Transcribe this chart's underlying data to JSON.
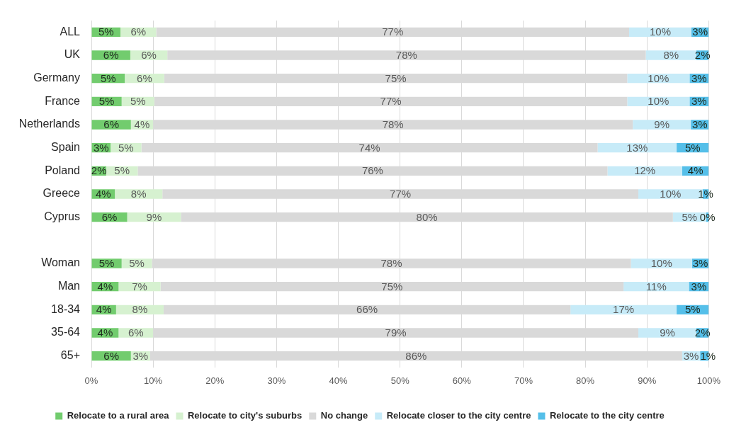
{
  "chart_data": {
    "type": "bar",
    "orientation": "horizontal",
    "stacked": true,
    "categories": [
      "ALL",
      "UK",
      "Germany",
      "France",
      "Netherlands",
      "Spain",
      "Poland",
      "Greece",
      "Cyprus",
      null,
      "Woman",
      "Man",
      "18-34",
      "35-64",
      "65+"
    ],
    "series": [
      {
        "name": "Relocate to a rural area",
        "color": "#72cc6e",
        "values": [
          4.7,
          6.3,
          5.4,
          4.9,
          6.4,
          3.1,
          2.4,
          3.8,
          5.8,
          null,
          4.9,
          4.4,
          4.0,
          4.4,
          6.4
        ],
        "value_labels": [
          "5%",
          "6%",
          "5%",
          "5%",
          "6%",
          "3%",
          "2%",
          "4%",
          "6%",
          null,
          "5%",
          "4%",
          "4%",
          "4%",
          "6%"
        ]
      },
      {
        "name": "Relocate to city's suburbs",
        "color": "#d6f1d0",
        "values": [
          5.8,
          6.0,
          6.4,
          5.3,
          3.6,
          5.0,
          5.1,
          7.7,
          8.7,
          null,
          4.9,
          6.8,
          7.7,
          5.6,
          3.1
        ],
        "value_labels": [
          "6%",
          "6%",
          "6%",
          "5%",
          "4%",
          "5%",
          "5%",
          "8%",
          "9%",
          null,
          "5%",
          "7%",
          "8%",
          "6%",
          "3%"
        ]
      },
      {
        "name": "No change",
        "color": "#d9d9d9",
        "values": [
          76.6,
          77.5,
          75.0,
          76.6,
          77.7,
          73.9,
          76.1,
          77.1,
          79.7,
          null,
          77.6,
          75.0,
          65.9,
          78.6,
          86.2
        ],
        "value_labels": [
          "77%",
          "78%",
          "75%",
          "77%",
          "78%",
          "74%",
          "76%",
          "77%",
          "80%",
          null,
          "78%",
          "75%",
          "66%",
          "79%",
          "86%"
        ]
      },
      {
        "name": "Relocate closer to the city centre",
        "color": "#c7ebf8",
        "values": [
          10.1,
          8.2,
          10.1,
          10.1,
          9.4,
          12.8,
          12.1,
          10.4,
          5.4,
          null,
          9.9,
          10.6,
          17.2,
          9.4,
          2.9
        ],
        "value_labels": [
          "10%",
          "8%",
          "10%",
          "10%",
          "9%",
          "13%",
          "12%",
          "10%",
          "5%",
          null,
          "10%",
          "11%",
          "17%",
          "9%",
          "3%"
        ]
      },
      {
        "name": "Relocate to the city centre",
        "color": "#55bfe9",
        "values": [
          2.8,
          2.0,
          3.1,
          3.1,
          2.9,
          5.2,
          4.3,
          1.0,
          0.4,
          null,
          2.7,
          3.2,
          5.2,
          2.0,
          1.4
        ],
        "value_labels": [
          "3%",
          "2%",
          "3%",
          "3%",
          "3%",
          "5%",
          "4%",
          "1%",
          "0%",
          null,
          "3%",
          "3%",
          "5%",
          "2%",
          "1%"
        ]
      }
    ],
    "xlim": [
      0,
      100
    ],
    "xticks": [
      {
        "value": 0,
        "label": "0%"
      },
      {
        "value": 10,
        "label": "10%"
      },
      {
        "value": 20,
        "label": "20%"
      },
      {
        "value": 30,
        "label": "30%"
      },
      {
        "value": 40,
        "label": "40%"
      },
      {
        "value": 50,
        "label": "50%"
      },
      {
        "value": 60,
        "label": "60%"
      },
      {
        "value": 70,
        "label": "70%"
      },
      {
        "value": 80,
        "label": "80%"
      },
      {
        "value": 90,
        "label": "90%"
      },
      {
        "value": 100,
        "label": "100%"
      }
    ],
    "grid": "x",
    "legend": "bottom"
  }
}
